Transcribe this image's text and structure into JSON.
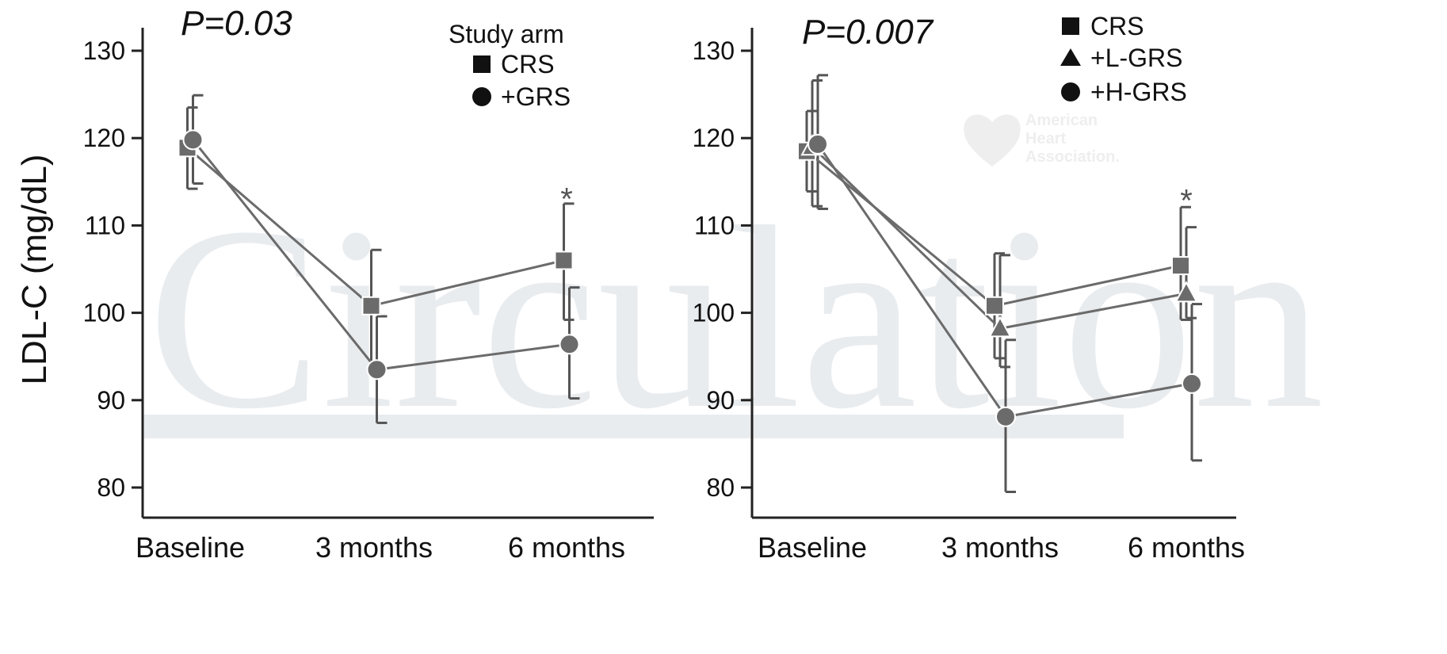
{
  "watermark": {
    "journal": "Circulation",
    "logo_lines": [
      "American",
      "Heart",
      "Association."
    ]
  },
  "chart_data": [
    {
      "type": "line",
      "ylabel": "LDL-C (mg/dL)",
      "xlabel": "",
      "ylim": [
        77,
        132
      ],
      "yticks": [
        80,
        90,
        100,
        110,
        120,
        130
      ],
      "categories": [
        "Baseline",
        "3 months",
        "6 months"
      ],
      "pvalue": "P=0.03",
      "legend_title": "Study arm",
      "legend_position": "top-right",
      "annotations": [
        {
          "text": "*",
          "category": "6 months",
          "y": 113.8
        }
      ],
      "series": [
        {
          "name": "CRS",
          "marker": "square",
          "color": "#6b6b6b",
          "values": [
            118.9,
            100.8,
            106.0
          ],
          "err_low": [
            114.2,
            94.4,
            99.2
          ],
          "err_high": [
            123.5,
            107.2,
            112.5
          ]
        },
        {
          "name": "+GRS",
          "marker": "circle",
          "color": "#6b6b6b",
          "values": [
            119.8,
            93.5,
            96.4
          ],
          "err_low": [
            114.8,
            87.4,
            90.2
          ],
          "err_high": [
            124.9,
            99.6,
            102.9
          ]
        }
      ]
    },
    {
      "type": "line",
      "ylabel": "",
      "xlabel": "",
      "ylim": [
        77,
        132
      ],
      "yticks": [
        80,
        90,
        100,
        110,
        120,
        130
      ],
      "categories": [
        "Baseline",
        "3 months",
        "6 months"
      ],
      "pvalue": "P=0.007",
      "legend_title": "",
      "legend_position": "top-right",
      "annotations": [
        {
          "text": "*",
          "category": "6 months",
          "y": 113.6
        }
      ],
      "series": [
        {
          "name": "CRS",
          "marker": "square",
          "color": "#6b6b6b",
          "values": [
            118.5,
            100.8,
            105.4
          ],
          "err_low": [
            113.9,
            94.8,
            99.2
          ],
          "err_high": [
            123.1,
            106.8,
            112.1
          ]
        },
        {
          "name": "+L-GRS",
          "marker": "triangle",
          "color": "#6b6b6b",
          "values": [
            119.0,
            98.2,
            102.2
          ],
          "err_low": [
            112.2,
            93.8,
            99.4
          ],
          "err_high": [
            126.6,
            106.6,
            109.8
          ]
        },
        {
          "name": "+H-GRS",
          "marker": "circle",
          "color": "#6b6b6b",
          "values": [
            119.3,
            88.1,
            91.9
          ],
          "err_low": [
            111.9,
            79.5,
            83.1
          ],
          "err_high": [
            127.2,
            96.9,
            101.0
          ]
        }
      ]
    }
  ]
}
